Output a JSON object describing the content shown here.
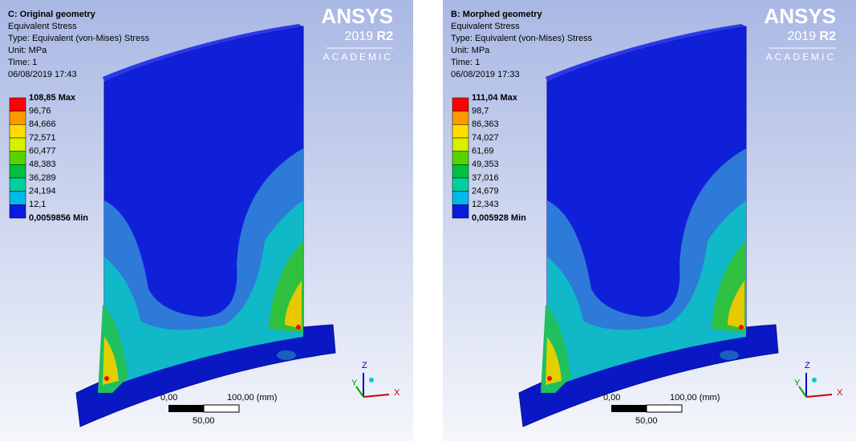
{
  "logo": {
    "brand": "ANSYS",
    "version": "2019",
    "release": "R2",
    "edition": "ACADEMIC"
  },
  "triad": [
    "Z",
    "Y",
    "X"
  ],
  "panels": [
    {
      "title": "C: Original geometry",
      "lines": [
        "Equivalent Stress",
        "Type: Equivalent (von-Mises) Stress",
        "Unit: MPa",
        "Time: 1",
        "06/08/2019 17:43"
      ],
      "legend": [
        "108,85 Max",
        "96,76",
        "84,666",
        "72,571",
        "60,477",
        "48,383",
        "36,289",
        "24,194",
        "12,1",
        "0,0059856 Min"
      ],
      "scale": [
        "0,00",
        "100,00 (mm)",
        "50,00"
      ]
    },
    {
      "title": "B: Morphed geometry",
      "lines": [
        "Equivalent Stress",
        "Type: Equivalent (von-Mises) Stress",
        "Unit: MPa",
        "Time: 1",
        "06/08/2019 17:33"
      ],
      "legend": [
        "111,04 Max",
        "98,7",
        "86,363",
        "74,027",
        "61,69",
        "49,353",
        "37,016",
        "24,679",
        "12,343",
        "0,005928 Min"
      ],
      "scale": [
        "0,00",
        "100,00 (mm)",
        "50,00"
      ]
    }
  ]
}
